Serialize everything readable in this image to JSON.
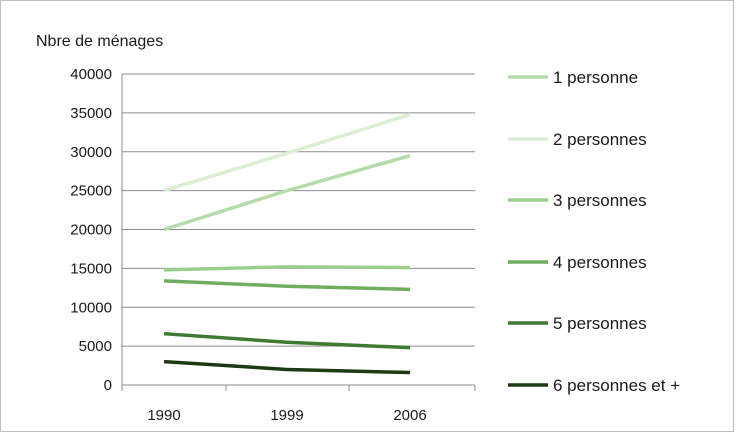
{
  "chart_data": {
    "type": "line",
    "title": "",
    "xlabel": "",
    "ylabel": "Nbre de ménages",
    "categories": [
      "1990",
      "1999",
      "2006"
    ],
    "ylim": [
      0,
      40000
    ],
    "yticks": [
      "40000",
      "35000",
      "30000",
      "25000",
      "20000",
      "15000",
      "10000",
      "5000",
      "0"
    ],
    "grid": true,
    "legend": "right",
    "series": [
      {
        "name": "1 personne",
        "values": [
          20000,
          25000,
          29500
        ],
        "color": "#b3dca9"
      },
      {
        "name": "2 personnes",
        "values": [
          25000,
          29800,
          34800
        ],
        "color": "#d9eed3"
      },
      {
        "name": "3 personnes",
        "values": [
          14800,
          15200,
          15100
        ],
        "color": "#9ccf8f"
      },
      {
        "name": "4 personnes",
        "values": [
          13400,
          12700,
          12300
        ],
        "color": "#6fae5f"
      },
      {
        "name": "5 personnes",
        "values": [
          6600,
          5500,
          4800
        ],
        "color": "#3f7a32"
      },
      {
        "name": "6 personnes et +",
        "values": [
          3000,
          2000,
          1600
        ],
        "color": "#1c3a14"
      }
    ]
  }
}
